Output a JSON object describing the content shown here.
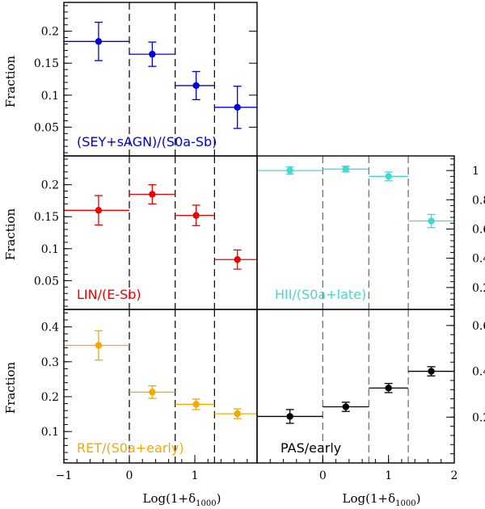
{
  "chart_data": [
    {
      "type": "scatter",
      "panel": "top-left",
      "label": "(SEY+sAGN)/(S0a-Sb)",
      "color": "#0000dd",
      "ylabel": "Fraction",
      "xlim": [
        -1,
        1.95
      ],
      "ylim": [
        0.005,
        0.245
      ],
      "yticks": [
        0.05,
        0.1,
        0.15,
        0.2
      ],
      "x_bin_edges": [
        [
          -1.0,
          0.0
        ],
        [
          0.0,
          0.7
        ],
        [
          0.7,
          1.3
        ],
        [
          1.3,
          2.0
        ]
      ],
      "x": [
        -0.47,
        0.35,
        1.02,
        1.65
      ],
      "y": [
        0.184,
        0.164,
        0.115,
        0.081
      ],
      "y_err": [
        0.03,
        0.019,
        0.022,
        0.033
      ],
      "bin_boundaries": [
        0,
        0.7,
        1.3
      ]
    },
    {
      "type": "scatter",
      "panel": "middle-left",
      "label": "LIN/(E-Sb)",
      "color": "#ee0000",
      "ylabel": "Fraction",
      "xlim": [
        -1,
        1.95
      ],
      "ylim": [
        0.005,
        0.245
      ],
      "yticks": [
        0.05,
        0.1,
        0.15,
        0.2
      ],
      "x_bin_edges": [
        [
          -1.0,
          0.0
        ],
        [
          0.0,
          0.7
        ],
        [
          0.7,
          1.3
        ],
        [
          1.3,
          2.0
        ]
      ],
      "x": [
        -0.47,
        0.35,
        1.02,
        1.65
      ],
      "y": [
        0.16,
        0.185,
        0.152,
        0.083
      ],
      "y_err": [
        0.023,
        0.015,
        0.016,
        0.015
      ],
      "bin_boundaries": [
        0,
        0.7,
        1.3
      ]
    },
    {
      "type": "scatter",
      "panel": "middle-right",
      "label": "HII/(S0a+late)",
      "color": "#40d8d0",
      "xlim": [
        -1,
        2
      ],
      "ylim": [
        0.05,
        1.1
      ],
      "yticks": [
        0.2,
        0.4,
        0.6,
        0.8,
        1
      ],
      "x_bin_edges": [
        [
          -1.0,
          0.0
        ],
        [
          0.0,
          0.7
        ],
        [
          0.7,
          1.3
        ],
        [
          1.3,
          2.0
        ]
      ],
      "x": [
        -0.5,
        0.35,
        1.0,
        1.65
      ],
      "y": [
        1.0,
        1.01,
        0.96,
        0.655
      ],
      "y_err": [
        0.025,
        0.02,
        0.03,
        0.045
      ],
      "bin_boundaries": [
        0,
        0.7,
        1.3
      ]
    },
    {
      "type": "scatter",
      "panel": "bottom-left",
      "label": "RET/(S0a+early)",
      "color": "#f5a800",
      "ylabel": "Fraction",
      "xlabel": "Log(1+δ1000)",
      "xlim": [
        -1,
        1.95
      ],
      "ylim": [
        0.01,
        0.45
      ],
      "yticks": [
        0.1,
        0.2,
        0.3,
        0.4
      ],
      "xticks": [
        -1,
        0,
        1
      ],
      "x_bin_edges": [
        [
          -1.0,
          0.0
        ],
        [
          0.0,
          0.7
        ],
        [
          0.7,
          1.3
        ],
        [
          1.3,
          2.0
        ]
      ],
      "x": [
        -0.47,
        0.35,
        1.02,
        1.65
      ],
      "y": [
        0.347,
        0.213,
        0.178,
        0.151
      ],
      "y_err": [
        0.042,
        0.018,
        0.015,
        0.014
      ],
      "bin_boundaries": [
        0,
        0.7,
        1.3
      ]
    },
    {
      "type": "scatter",
      "panel": "bottom-right",
      "label": "PAS/early",
      "color": "#000000",
      "xlabel": "Log(1+δ1000)",
      "xlim": [
        -1,
        2
      ],
      "ylim": [
        0.0,
        0.67
      ],
      "yticks": [
        0.2,
        0.4,
        0.6
      ],
      "xticks": [
        0,
        1,
        2
      ],
      "x_bin_edges": [
        [
          -1.0,
          0.0
        ],
        [
          0.0,
          0.7
        ],
        [
          0.7,
          1.3
        ],
        [
          1.3,
          2.0
        ]
      ],
      "x": [
        -0.5,
        0.35,
        1.0,
        1.65
      ],
      "y": [
        0.203,
        0.245,
        0.327,
        0.4
      ],
      "y_err": [
        0.03,
        0.02,
        0.02,
        0.02
      ],
      "bin_boundaries": [
        0,
        0.7,
        1.3
      ]
    }
  ],
  "axis_text": {
    "ylabel": "Fraction",
    "xlabel_main": "Log(1+δ",
    "xlabel_sub": "1000",
    "xlabel_close": ")"
  }
}
